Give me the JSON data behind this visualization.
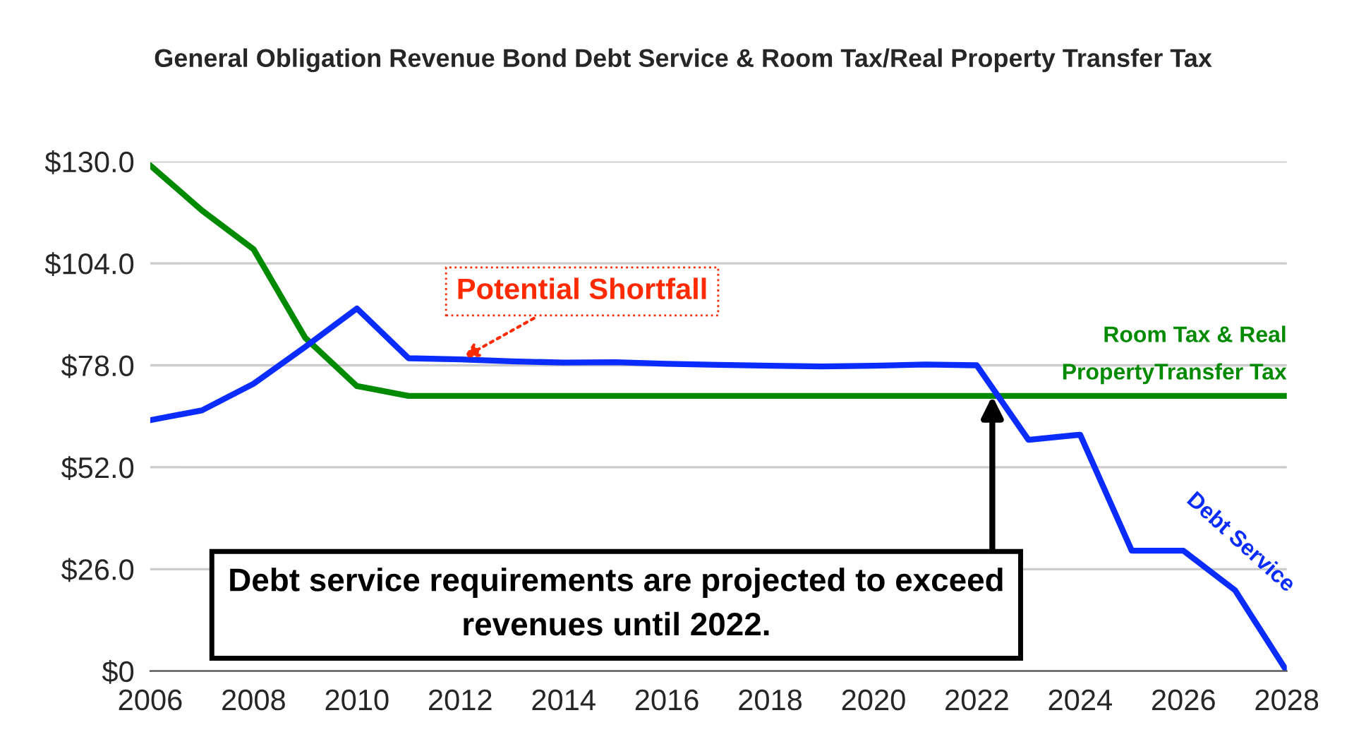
{
  "chart_data": {
    "type": "line",
    "title": "General Obligation Revenue Bond Debt Service & Room Tax/Real Property Transfer Tax",
    "x": [
      2006,
      2007,
      2008,
      2009,
      2010,
      2011,
      2012,
      2013,
      2014,
      2015,
      2016,
      2017,
      2018,
      2019,
      2020,
      2021,
      2022,
      2023,
      2024,
      2025,
      2026,
      2027,
      2028
    ],
    "series": [
      {
        "name": "Room Tax & Real\nPropertyTransfer Tax",
        "color": "#008a00",
        "values": [
          129,
          117.5,
          107.6,
          85,
          72.7,
          70.2,
          70.2,
          70.2,
          70.2,
          70.2,
          70.2,
          70.2,
          70.2,
          70.2,
          70.2,
          70.2,
          70.2,
          70.2,
          70.2,
          70.2,
          70.2,
          70.2,
          70.2
        ]
      },
      {
        "name": "Debt Service",
        "color": "#0a2cff",
        "values": [
          64,
          66.5,
          73.3,
          82.7,
          92.5,
          79.8,
          79.5,
          79,
          78.7,
          78.8,
          78.4,
          78.1,
          77.9,
          77.7,
          77.9,
          78.2,
          78,
          59,
          60.3,
          30.7,
          30.7,
          20.6,
          0
        ]
      }
    ],
    "xlim": [
      2006,
      2028
    ],
    "xticks": [
      2006,
      2008,
      2010,
      2012,
      2014,
      2016,
      2018,
      2020,
      2022,
      2024,
      2026,
      2028
    ],
    "ylim": [
      0,
      130
    ],
    "yticks": [
      {
        "value": 0,
        "label": "$0"
      },
      {
        "value": 26,
        "label": "$26.0"
      },
      {
        "value": 52,
        "label": "$52.0"
      },
      {
        "value": 78,
        "label": "$78.0"
      },
      {
        "value": 104,
        "label": "$104.0"
      },
      {
        "value": 130,
        "label": "$130.0"
      }
    ],
    "grid": "y",
    "legend": false,
    "marker": "none",
    "line_style": "solid",
    "annotations": [
      {
        "text": "Potential Shortfall",
        "x": 2012,
        "y": 79.5
      },
      {
        "text": "Debt service requirements are projected to exceed\nrevenues until 2022.",
        "x": 2022.3,
        "y": 70.2
      }
    ]
  }
}
